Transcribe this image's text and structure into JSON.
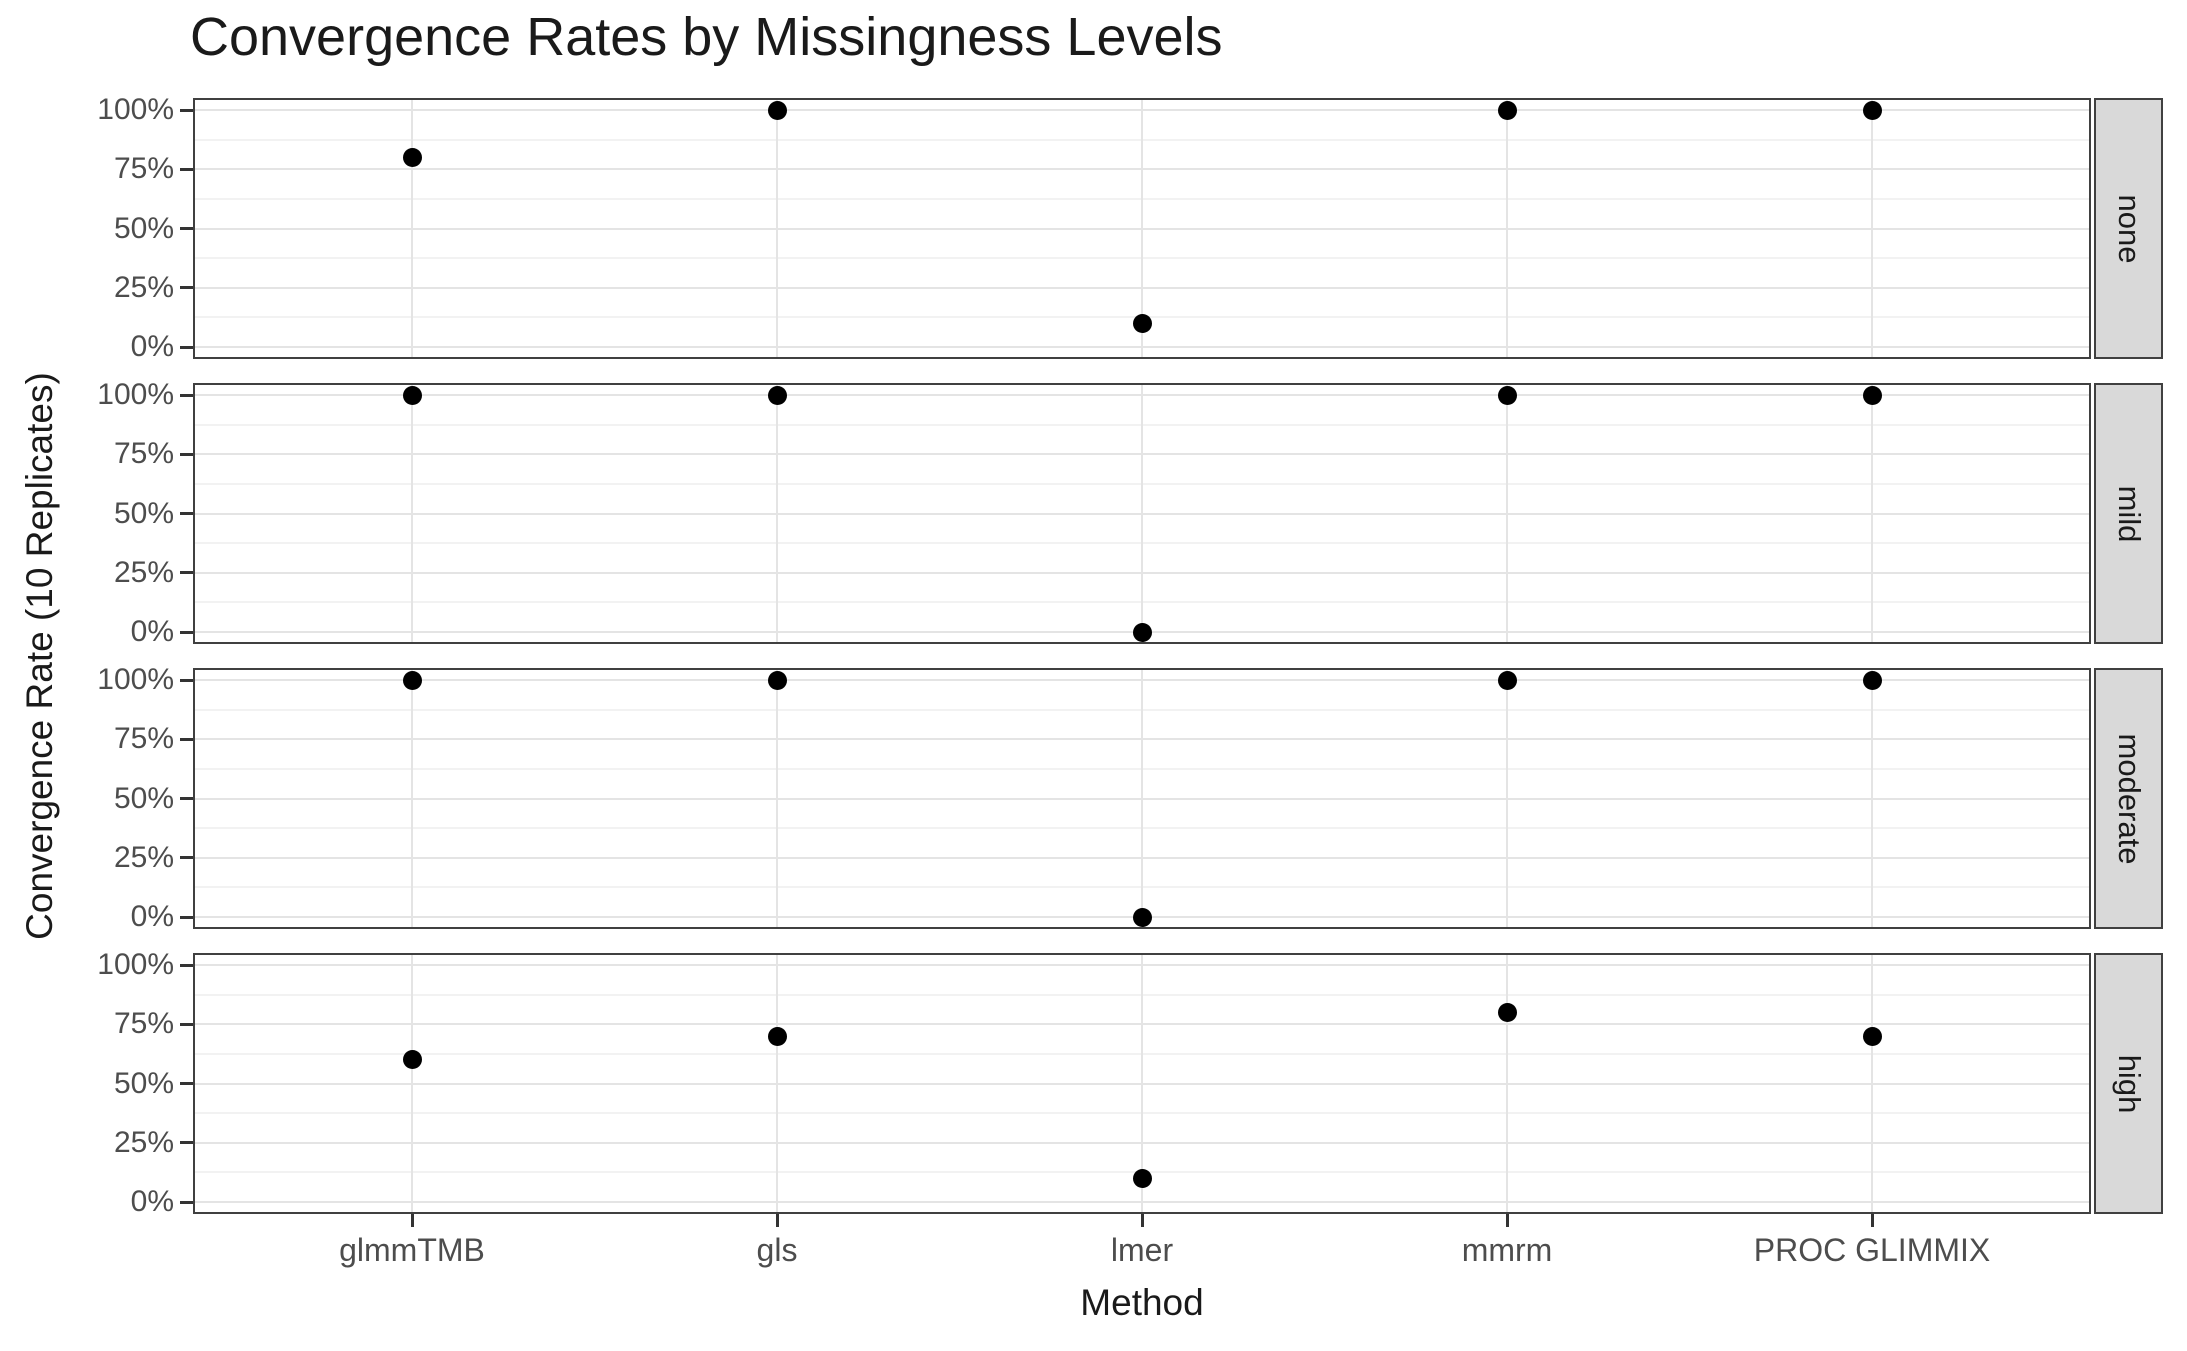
{
  "title": "Convergence Rates by Missingness Levels",
  "axes": {
    "x": {
      "title": "Method"
    },
    "y": {
      "title": "Convergence Rate (10 Replicates)"
    }
  },
  "chart_data": {
    "type": "scatter",
    "title": "Convergence Rates by Missingness Levels",
    "xlabel": "Method",
    "ylabel": "Convergence Rate (10 Replicates)",
    "categories": [
      "glmmTMB",
      "gls",
      "lmer",
      "mmrm",
      "PROC GLIMMIX"
    ],
    "facet_levels": [
      "none",
      "mild",
      "moderate",
      "high"
    ],
    "facet_strip_position": "right",
    "ylim": [
      0,
      100
    ],
    "y_major_ticks": [
      0,
      25,
      50,
      75,
      100
    ],
    "y_minor_ticks": [
      12.5,
      37.5,
      62.5,
      87.5
    ],
    "y_tick_labels": [
      "0%",
      "25%",
      "50%",
      "75%",
      "100%"
    ],
    "grid": "horizontal major+minor, vertical major at categories",
    "legend_position": "none",
    "series": [
      {
        "facet": "none",
        "values_percent": [
          80,
          100,
          10,
          100,
          100
        ]
      },
      {
        "facet": "mild",
        "values_percent": [
          100,
          100,
          0,
          100,
          100
        ]
      },
      {
        "facet": "moderate",
        "values_percent": [
          100,
          100,
          0,
          100,
          100
        ]
      },
      {
        "facet": "high",
        "values_percent": [
          60,
          70,
          10,
          80,
          70
        ]
      }
    ]
  },
  "colors": {
    "point": "#000000",
    "panel_background": "#ffffff",
    "panel_border": "#404040",
    "grid_major": "#e4e4e4",
    "grid_minor": "#f2f2f2",
    "strip_fill": "#d9d9d9",
    "strip_border": "#404040",
    "strip_text": "#1a1a1a",
    "axis_text": "#4d4d4d",
    "title_text": "#1a1a1a",
    "tick_mark": "#333333"
  }
}
